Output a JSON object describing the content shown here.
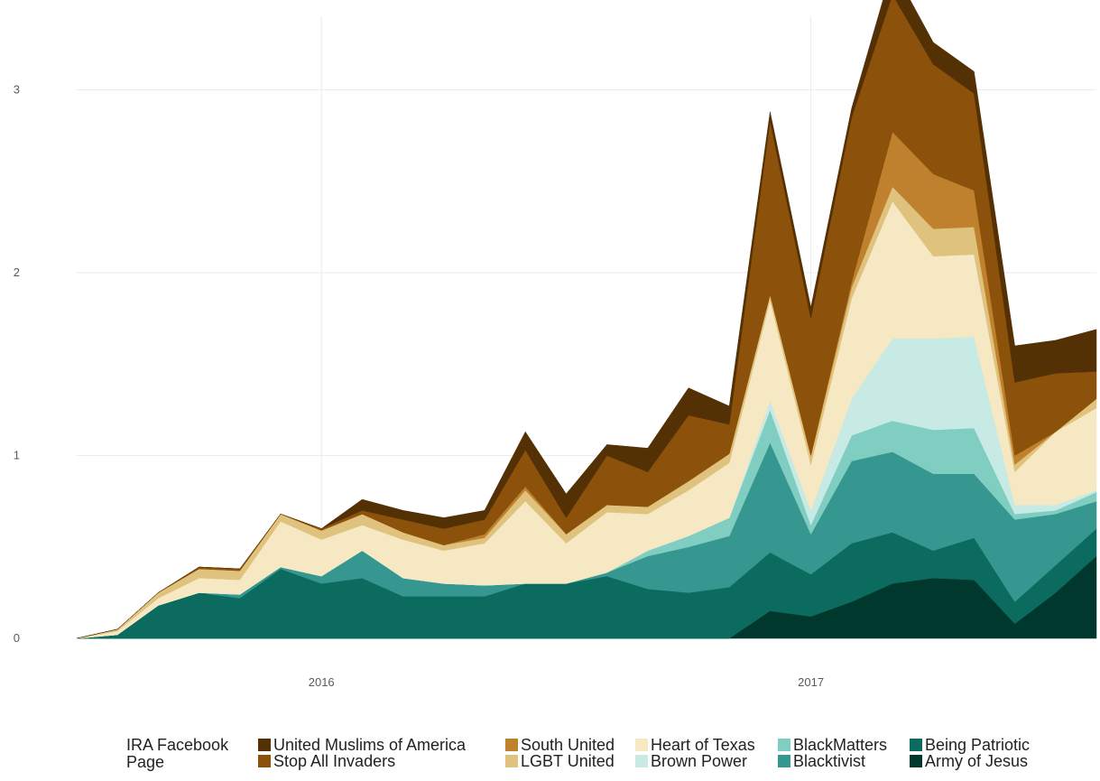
{
  "chart_data": {
    "type": "area",
    "stacked": true,
    "title": "",
    "xlabel": "",
    "ylabel": "",
    "ylim": [
      0,
      3.3
    ],
    "xlim": [
      "2015-07",
      "2017-08"
    ],
    "grid": true,
    "y_ticks": [
      0,
      1,
      2,
      3
    ],
    "y_tick_labels": [
      "0",
      "1",
      "2",
      "3"
    ],
    "x_ticks": [
      "2016-01",
      "2017-01"
    ],
    "x_tick_labels": [
      "2016",
      "2017"
    ],
    "x": [
      "2015-07",
      "2015-08",
      "2015-09",
      "2015-10",
      "2015-11",
      "2015-12",
      "2016-01",
      "2016-02",
      "2016-03",
      "2016-04",
      "2016-05",
      "2016-06",
      "2016-07",
      "2016-08",
      "2016-09",
      "2016-10",
      "2016-11",
      "2016-12",
      "2017-01",
      "2017-02",
      "2017-03",
      "2017-04",
      "2017-05",
      "2017-06",
      "2017-07",
      "2017-08"
    ],
    "series": [
      {
        "name": "Army of Jesus",
        "color": "#01382d",
        "values": [
          0,
          0,
          0,
          0,
          0,
          0,
          0,
          0,
          0,
          0,
          0,
          0,
          0,
          0,
          0,
          0,
          0,
          0.15,
          0.12,
          0.2,
          0.3,
          0.33,
          0.32,
          0.08,
          0.25,
          0.45
        ]
      },
      {
        "name": "Being Patriotic",
        "color": "#0b6b5e",
        "values": [
          0,
          0.02,
          0.18,
          0.25,
          0.22,
          0.38,
          0.3,
          0.33,
          0.23,
          0.23,
          0.23,
          0.3,
          0.3,
          0.34,
          0.27,
          0.25,
          0.28,
          0.32,
          0.23,
          0.32,
          0.28,
          0.15,
          0.23,
          0.12,
          0.15,
          0.15
        ]
      },
      {
        "name": "Blacktivist",
        "color": "#35978f",
        "values": [
          0,
          0,
          0,
          0,
          0.02,
          0.01,
          0.04,
          0.15,
          0.1,
          0.07,
          0.06,
          0,
          0,
          0.02,
          0.18,
          0.25,
          0.28,
          0.6,
          0.22,
          0.45,
          0.44,
          0.42,
          0.35,
          0.45,
          0.28,
          0.15
        ]
      },
      {
        "name": "BlackMatters",
        "color": "#80cdc1",
        "values": [
          0,
          0,
          0,
          0,
          0,
          0,
          0,
          0,
          0,
          0,
          0,
          0,
          0,
          0,
          0.03,
          0.06,
          0.1,
          0.18,
          0.05,
          0.14,
          0.17,
          0.24,
          0.25,
          0.03,
          0.02,
          0.05
        ]
      },
      {
        "name": "Brown Power",
        "color": "#c7eae5",
        "values": [
          0,
          0,
          0,
          0,
          0,
          0,
          0,
          0,
          0,
          0,
          0,
          0,
          0,
          0,
          0,
          0,
          0,
          0.05,
          0.08,
          0.2,
          0.45,
          0.5,
          0.5,
          0.05,
          0.03,
          0.01
        ]
      },
      {
        "name": "Heart of Texas",
        "color": "#f6e8c3",
        "values": [
          0,
          0.02,
          0.04,
          0.08,
          0.08,
          0.25,
          0.2,
          0.14,
          0.21,
          0.18,
          0.23,
          0.45,
          0.22,
          0.33,
          0.2,
          0.25,
          0.3,
          0.55,
          0.25,
          0.55,
          0.75,
          0.45,
          0.45,
          0.18,
          0.4,
          0.45
        ]
      },
      {
        "name": "LGBT United",
        "color": "#dfc27d",
        "values": [
          0,
          0.01,
          0.03,
          0.05,
          0.05,
          0.04,
          0.05,
          0.06,
          0.04,
          0.03,
          0.03,
          0.06,
          0.05,
          0.04,
          0.04,
          0.05,
          0.05,
          0.03,
          0.05,
          0.06,
          0.08,
          0.15,
          0.15,
          0.04,
          0,
          0.05
        ]
      },
      {
        "name": "South United",
        "color": "#bf812d",
        "values": [
          0,
          0,
          0,
          0,
          0,
          0,
          0,
          0,
          0,
          0,
          0.02,
          0.02,
          0,
          0,
          0,
          0,
          0,
          0,
          0,
          0.03,
          0.3,
          0.3,
          0.2,
          0.05,
          0,
          0
        ]
      },
      {
        "name": "Stop All Invaders",
        "color": "#8c510a",
        "values": [
          0,
          0,
          0,
          0.01,
          0.01,
          0,
          0.01,
          0.02,
          0.07,
          0.09,
          0.08,
          0.2,
          0.09,
          0.27,
          0.19,
          0.36,
          0.16,
          0.95,
          0.75,
          0.9,
          0.75,
          0.6,
          0.53,
          0.4,
          0.32,
          0.15
        ]
      },
      {
        "name": "United Muslims of America",
        "color": "#543005",
        "values": [
          0,
          0,
          0,
          0,
          0,
          0,
          0,
          0.06,
          0.05,
          0.06,
          0.05,
          0.1,
          0.13,
          0.06,
          0.13,
          0.15,
          0.1,
          0.05,
          0.06,
          0.05,
          0.15,
          0.12,
          0.12,
          0.2,
          0.18,
          0.23
        ]
      }
    ]
  },
  "legend": {
    "title": "IRA Facebook Page",
    "items": [
      {
        "name": "United Muslims of America",
        "color": "#543005"
      },
      {
        "name": "Stop All Invaders",
        "color": "#8c510a"
      },
      {
        "name": "South United",
        "color": "#bf812d"
      },
      {
        "name": "LGBT United",
        "color": "#dfc27d"
      },
      {
        "name": "Heart of Texas",
        "color": "#f6e8c3"
      },
      {
        "name": "Brown Power",
        "color": "#c7eae5"
      },
      {
        "name": "BlackMatters",
        "color": "#80cdc1"
      },
      {
        "name": "Blacktivist",
        "color": "#35978f"
      },
      {
        "name": "Being Patriotic",
        "color": "#0b6b5e"
      },
      {
        "name": "Army of Jesus",
        "color": "#01382d"
      }
    ]
  }
}
